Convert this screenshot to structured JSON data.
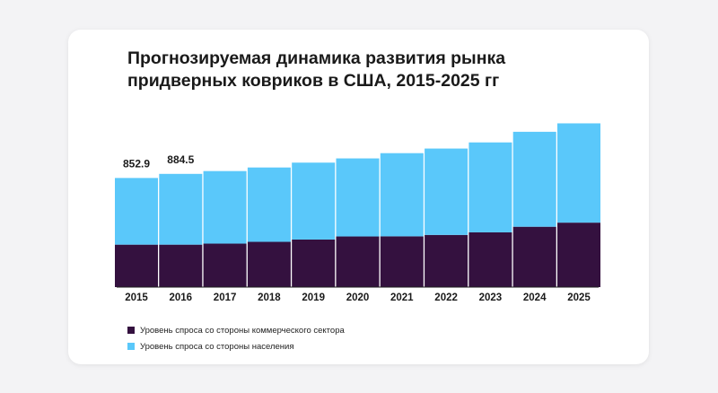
{
  "title": "Прогнозируемая динамика развития рынка придверных ковриков в США, 2015-2025 гг",
  "chart_data": {
    "type": "bar",
    "stacked": true,
    "categories": [
      "2015",
      "2016",
      "2017",
      "2018",
      "2019",
      "2020",
      "2021",
      "2022",
      "2023",
      "2024",
      "2025"
    ],
    "series": [
      {
        "name": "Уровень спроса со стороны коммерческого сектора",
        "color": "#34113f",
        "values": [
          332,
          332,
          340,
          354,
          372,
          396,
          397,
          408,
          428,
          472,
          504
        ]
      },
      {
        "name": "Уровень спроса со стороны населения",
        "color": "#5ac8fa",
        "values": [
          521,
          553,
          567,
          581,
          601,
          610,
          650,
          675,
          703,
          742,
          776
        ]
      }
    ],
    "data_labels": [
      {
        "category": "2015",
        "text": "852.9"
      },
      {
        "category": "2016",
        "text": "884.5"
      }
    ],
    "ylim": [
      0,
      1280
    ],
    "grid": false,
    "legend_position": "bottom-left"
  }
}
